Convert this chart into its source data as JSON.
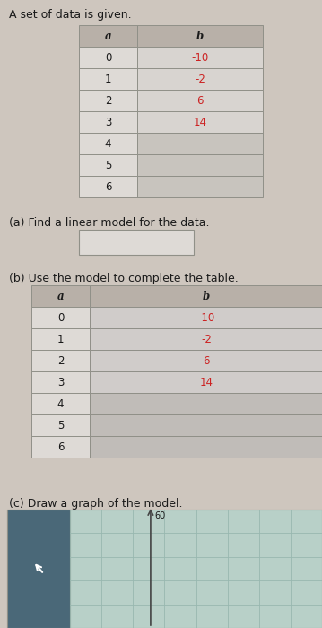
{
  "title": "A set of data is given.",
  "table1_headers": [
    "a",
    "b"
  ],
  "table1_a": [
    "0",
    "1",
    "2",
    "3",
    "4",
    "5",
    "6"
  ],
  "table1_b": [
    "-10",
    "-2",
    "6",
    "14",
    "",
    "",
    ""
  ],
  "table1_b_red": [
    true,
    true,
    true,
    true,
    false,
    false,
    false
  ],
  "part_a_label": "(a) Find a linear model for the data.",
  "part_b_label": "(b) Use the model to complete the table.",
  "table2_headers": [
    "a",
    "b"
  ],
  "table2_a": [
    "0",
    "1",
    "2",
    "3",
    "4",
    "5",
    "6"
  ],
  "table2_b": [
    "-10",
    "-2",
    "6",
    "14",
    "",
    "",
    ""
  ],
  "table2_b_red": [
    true,
    true,
    true,
    true,
    false,
    false,
    false
  ],
  "part_c_label": "(c) Draw a graph of the model.",
  "graph_ylabel": "60",
  "bg_color": "#cec6be",
  "table_header_bg": "#b8b0a8",
  "table_cell_a_bg": "#dedad6",
  "table_cell_b_filled_bg": "#d8d4d0",
  "table_cell_b_empty_bg": "#c8c4be",
  "table2_cell_b_filled_bg": "#d0ccca",
  "table2_cell_b_empty_bg": "#c0bcb8",
  "text_black": "#1a1a1a",
  "text_red": "#cc2222",
  "border_color": "#909088",
  "graph_btn_bg": "#4a6878",
  "graph_area_bg": "#b8d0c8",
  "graph_grid_color": "#98b8b0",
  "graph_axis_color": "#444444"
}
